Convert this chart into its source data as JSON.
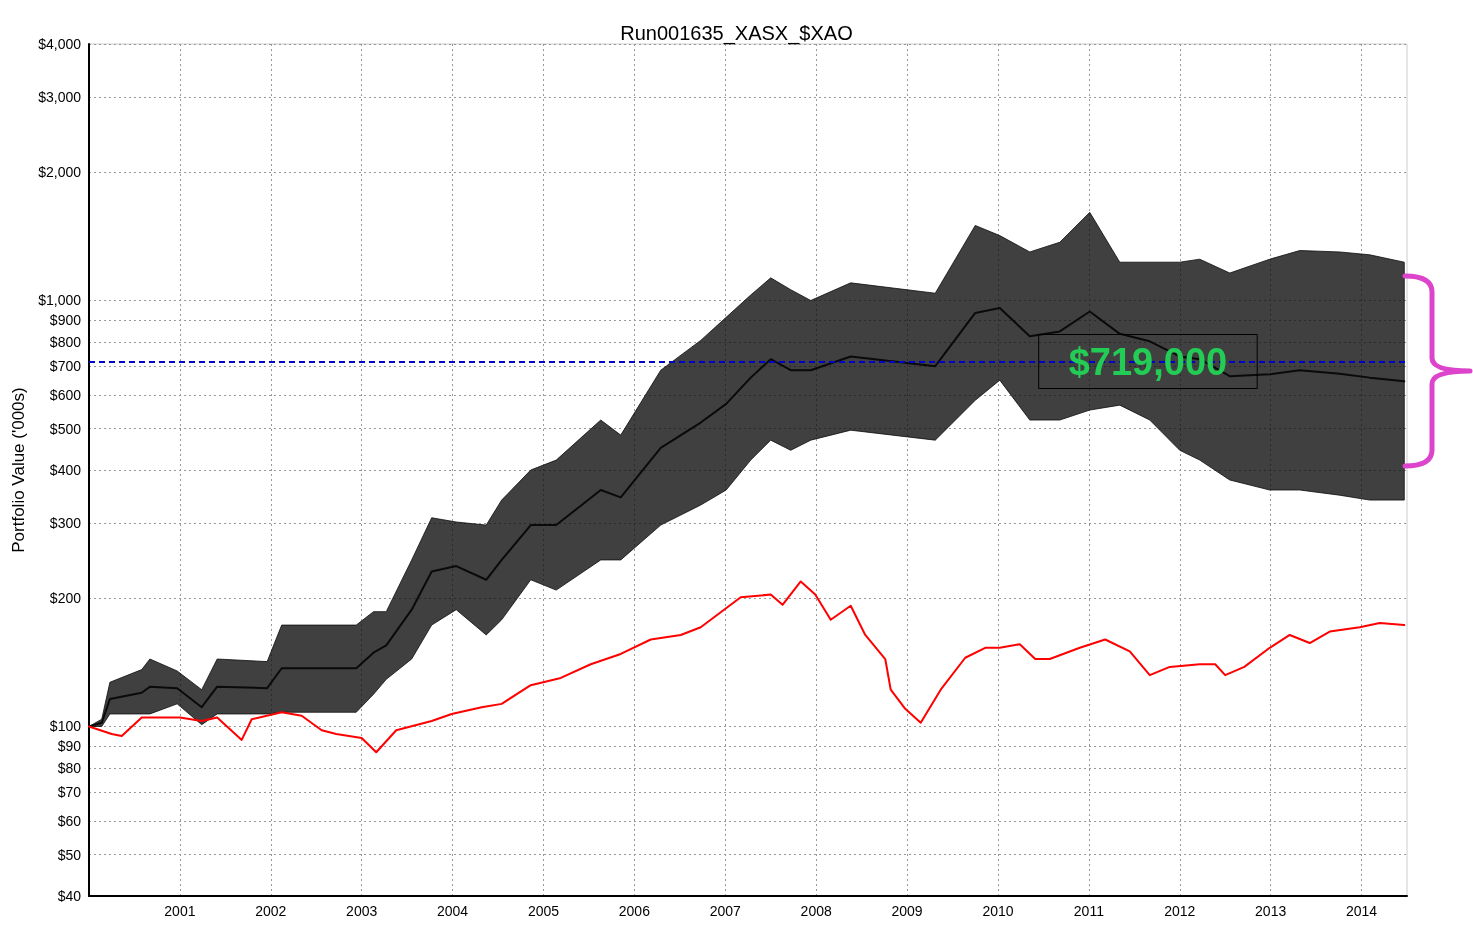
{
  "chart_data": {
    "type": "line",
    "title": "Run001635_XASX_$XAO",
    "ylabel": "Portfolio Value ('000s)",
    "log": "y",
    "grid": true,
    "legend": false,
    "marker": "none",
    "xlim": [
      2000,
      2014.5
    ],
    "xticks": [
      2001,
      2002,
      2003,
      2004,
      2005,
      2006,
      2007,
      2008,
      2009,
      2010,
      2011,
      2012,
      2013,
      2014
    ],
    "ylim": [
      40,
      4000
    ],
    "yticks": [
      {
        "value": 40,
        "label": "$40"
      },
      {
        "value": 50,
        "label": "$50"
      },
      {
        "value": 60,
        "label": "$60"
      },
      {
        "value": 70,
        "label": "$70"
      },
      {
        "value": 80,
        "label": "$80"
      },
      {
        "value": 90,
        "label": "$90"
      },
      {
        "value": 100,
        "label": "$100"
      },
      {
        "value": 200,
        "label": "$200"
      },
      {
        "value": 300,
        "label": "$300"
      },
      {
        "value": 400,
        "label": "$400"
      },
      {
        "value": 500,
        "label": "$500"
      },
      {
        "value": 600,
        "label": "$600"
      },
      {
        "value": 700,
        "label": "$700"
      },
      {
        "value": 800,
        "label": "$800"
      },
      {
        "value": 900,
        "label": "$900"
      },
      {
        "value": 1000,
        "label": "$1,000"
      },
      {
        "value": 2000,
        "label": "$2,000"
      },
      {
        "value": 3000,
        "label": "$3,000"
      },
      {
        "value": 4000,
        "label": "$4,000"
      }
    ],
    "series": [
      {
        "color": "#0a0a0a",
        "x": [
          2000.0,
          2000.14,
          2000.23,
          2000.58,
          2000.67,
          2000.97,
          2001.24,
          2001.41,
          2001.96,
          2002.12,
          2002.94,
          2003.13,
          2003.27,
          2003.55,
          2003.77,
          2004.04,
          2004.37,
          2004.54,
          2004.86,
          2005.14,
          2005.63,
          2005.85,
          2006.29,
          2006.73,
          2007.01,
          2007.28,
          2007.5,
          2007.72,
          2007.94,
          2008.38,
          2009.31,
          2009.75,
          2010.02,
          2010.35,
          2010.68,
          2011.01,
          2011.34,
          2011.67,
          2012.0,
          2012.22,
          2012.55,
          2012.99,
          2013.32,
          2013.76,
          2014.09,
          2014.47
        ],
        "values": [
          100,
          102,
          116,
          120,
          124,
          123,
          111,
          124,
          123,
          137,
          137,
          149,
          155,
          188,
          231,
          238,
          221,
          246,
          297,
          297,
          359,
          345,
          451,
          517,
          572,
          659,
          728,
          686,
          686,
          739,
          701,
          935,
          960,
          824,
          846,
          942,
          835,
          802,
          739,
          728,
          664,
          671,
          686,
          673,
          659,
          646
        ],
        "lower": [
          100,
          100,
          107,
          107,
          107,
          113,
          101,
          107,
          107,
          108,
          108,
          119,
          129,
          144,
          173,
          188,
          164,
          178,
          221,
          209,
          246,
          246,
          297,
          331,
          359,
          422,
          470,
          445,
          470,
          496,
          470,
          583,
          650,
          524,
          524,
          553,
          568,
          524,
          445,
          422,
          379,
          359,
          359,
          349,
          340,
          340
        ],
        "upper": [
          100,
          104,
          127,
          136,
          144,
          135,
          122,
          144,
          142,
          173,
          173,
          186,
          186,
          246,
          309,
          302,
          297,
          340,
          400,
          422,
          524,
          483,
          686,
          806,
          913,
          1030,
          1130,
          1060,
          1000,
          1100,
          1040,
          1500,
          1420,
          1300,
          1370,
          1610,
          1230,
          1230,
          1230,
          1250,
          1160,
          1250,
          1310,
          1300,
          1280,
          1230
        ]
      },
      {
        "color": "#ff0000",
        "x": [
          2000.0,
          2000.25,
          2000.36,
          2000.58,
          2001.0,
          2001.24,
          2001.41,
          2001.68,
          2001.79,
          2002.12,
          2002.34,
          2002.56,
          2002.72,
          2003.0,
          2003.16,
          2003.38,
          2003.77,
          2003.99,
          2004.32,
          2004.54,
          2004.86,
          2005.19,
          2005.52,
          2005.85,
          2006.18,
          2006.51,
          2006.73,
          2007.17,
          2007.5,
          2007.63,
          2007.83,
          2007.99,
          2008.16,
          2008.38,
          2008.54,
          2008.76,
          2008.82,
          2008.98,
          2009.15,
          2009.37,
          2009.64,
          2009.86,
          2010.02,
          2010.24,
          2010.41,
          2010.57,
          2010.9,
          2011.18,
          2011.45,
          2011.67,
          2011.89,
          2012.22,
          2012.39,
          2012.5,
          2012.71,
          2012.99,
          2013.21,
          2013.43,
          2013.65,
          2013.98,
          2014.2,
          2014.47
        ],
        "values": [
          100,
          96,
          95,
          105,
          105,
          103,
          105,
          93,
          104,
          108,
          106,
          98,
          96,
          94,
          87,
          98,
          103,
          107,
          111,
          113,
          125,
          130,
          140,
          148,
          160,
          164,
          171,
          201,
          204,
          193,
          219,
          204,
          178,
          192,
          164,
          144,
          122,
          110,
          102,
          122,
          145,
          153,
          153,
          156,
          144,
          144,
          153,
          160,
          150,
          132,
          138,
          140,
          140,
          132,
          138,
          153,
          164,
          157,
          167,
          171,
          175,
          173
        ]
      }
    ],
    "ref_lines": [
      {
        "axis": "y",
        "value": 719,
        "color": "#0000cc",
        "line_style": "dashed"
      }
    ],
    "annotations": [
      {
        "text": "$719,000",
        "x": 2011.65,
        "y": 719
      }
    ]
  }
}
